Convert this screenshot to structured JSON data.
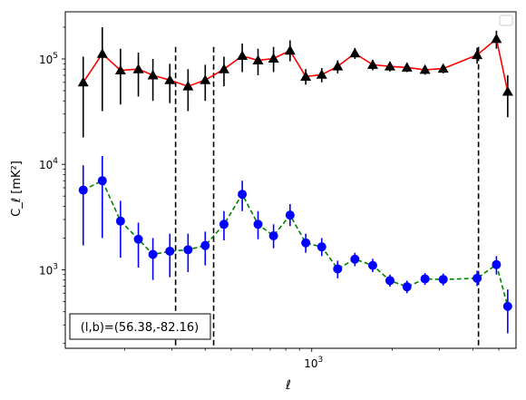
{
  "chart_data": {
    "type": "line",
    "xlabel": "ℓ",
    "ylabel": "C_ℓ [mK²]",
    "xscale": "log",
    "yscale": "log",
    "xlim": [
      120,
      5800
    ],
    "ylim": [
      180,
      280000
    ],
    "x_ticks": [
      {
        "value": 1000,
        "label": "10^3"
      }
    ],
    "y_ticks": [
      {
        "value": 1000,
        "label": "10^3"
      },
      {
        "value": 10000,
        "label": "10^4"
      },
      {
        "value": 100000,
        "label": "10^5"
      }
    ],
    "annotation": "(l,b)=(56.38,-82.16)",
    "legend": "top-right, empty",
    "vlines": [
      310,
      430,
      4200
    ],
    "series": [
      {
        "marker": "triangle",
        "marker_color": "#000000",
        "line_color": "#ff0000",
        "line_style": "solid",
        "errorbar_color": "#000000",
        "points": [
          {
            "x": 140,
            "y": 60000,
            "lo": 18000,
            "hi": 105000
          },
          {
            "x": 165,
            "y": 112000,
            "lo": 32000,
            "hi": 200000
          },
          {
            "x": 193,
            "y": 78000,
            "lo": 37000,
            "hi": 125000
          },
          {
            "x": 225,
            "y": 80000,
            "lo": 44000,
            "hi": 115000
          },
          {
            "x": 255,
            "y": 70000,
            "lo": 40000,
            "hi": 100000
          },
          {
            "x": 295,
            "y": 63000,
            "lo": 38000,
            "hi": 90000
          },
          {
            "x": 345,
            "y": 55000,
            "lo": 32000,
            "hi": 80000
          },
          {
            "x": 400,
            "y": 63000,
            "lo": 40000,
            "hi": 88000
          },
          {
            "x": 470,
            "y": 80000,
            "lo": 55000,
            "hi": 105000
          },
          {
            "x": 550,
            "y": 107000,
            "lo": 75000,
            "hi": 140000
          },
          {
            "x": 630,
            "y": 97000,
            "lo": 70000,
            "hi": 125000
          },
          {
            "x": 720,
            "y": 101000,
            "lo": 75000,
            "hi": 130000
          },
          {
            "x": 830,
            "y": 120000,
            "lo": 95000,
            "hi": 150000
          },
          {
            "x": 950,
            "y": 68000,
            "lo": 57000,
            "hi": 80000
          },
          {
            "x": 1090,
            "y": 71000,
            "lo": 60000,
            "hi": 82000
          },
          {
            "x": 1250,
            "y": 85000,
            "lo": 73000,
            "hi": 97000
          },
          {
            "x": 1450,
            "y": 113000,
            "lo": 100000,
            "hi": 127000
          },
          {
            "x": 1690,
            "y": 88000,
            "lo": 78000,
            "hi": 98000
          },
          {
            "x": 1960,
            "y": 85000,
            "lo": 76000,
            "hi": 94000
          },
          {
            "x": 2270,
            "y": 83000,
            "lo": 75000,
            "hi": 91000
          },
          {
            "x": 2650,
            "y": 79000,
            "lo": 71000,
            "hi": 87000
          },
          {
            "x": 3100,
            "y": 81000,
            "lo": 73000,
            "hi": 89000
          },
          {
            "x": 4150,
            "y": 109000,
            "lo": 90000,
            "hi": 128000
          },
          {
            "x": 4900,
            "y": 155000,
            "lo": 125000,
            "hi": 185000
          },
          {
            "x": 5400,
            "y": 49000,
            "lo": 28000,
            "hi": 70000
          }
        ]
      },
      {
        "marker": "circle",
        "marker_color": "#0000ff",
        "line_color": "#008000",
        "line_style": "dashed",
        "errorbar_color": "#0000ff",
        "points": [
          {
            "x": 140,
            "y": 5700,
            "lo": 1700,
            "hi": 9800
          },
          {
            "x": 165,
            "y": 7000,
            "lo": 2000,
            "hi": 12000
          },
          {
            "x": 193,
            "y": 2900,
            "lo": 1300,
            "hi": 4500
          },
          {
            "x": 225,
            "y": 1950,
            "lo": 1050,
            "hi": 2800
          },
          {
            "x": 255,
            "y": 1400,
            "lo": 800,
            "hi": 2000
          },
          {
            "x": 295,
            "y": 1500,
            "lo": 850,
            "hi": 2200
          },
          {
            "x": 345,
            "y": 1550,
            "lo": 950,
            "hi": 2200
          },
          {
            "x": 400,
            "y": 1700,
            "lo": 1100,
            "hi": 2300
          },
          {
            "x": 470,
            "y": 2700,
            "lo": 1900,
            "hi": 3600
          },
          {
            "x": 550,
            "y": 5200,
            "lo": 3600,
            "hi": 7000
          },
          {
            "x": 630,
            "y": 2700,
            "lo": 1950,
            "hi": 3600
          },
          {
            "x": 720,
            "y": 2100,
            "lo": 1600,
            "hi": 2700
          },
          {
            "x": 830,
            "y": 3300,
            "lo": 2600,
            "hi": 4200
          },
          {
            "x": 950,
            "y": 1800,
            "lo": 1450,
            "hi": 2200
          },
          {
            "x": 1090,
            "y": 1650,
            "lo": 1350,
            "hi": 2000
          },
          {
            "x": 1250,
            "y": 1020,
            "lo": 830,
            "hi": 1220
          },
          {
            "x": 1450,
            "y": 1260,
            "lo": 1080,
            "hi": 1450
          },
          {
            "x": 1690,
            "y": 1100,
            "lo": 950,
            "hi": 1270
          },
          {
            "x": 1960,
            "y": 790,
            "lo": 690,
            "hi": 900
          },
          {
            "x": 2270,
            "y": 690,
            "lo": 600,
            "hi": 790
          },
          {
            "x": 2650,
            "y": 820,
            "lo": 720,
            "hi": 930
          },
          {
            "x": 3100,
            "y": 810,
            "lo": 710,
            "hi": 920
          },
          {
            "x": 4150,
            "y": 830,
            "lo": 700,
            "hi": 980
          },
          {
            "x": 4900,
            "y": 1120,
            "lo": 900,
            "hi": 1350
          },
          {
            "x": 5400,
            "y": 450,
            "lo": 250,
            "hi": 650
          }
        ]
      }
    ]
  }
}
